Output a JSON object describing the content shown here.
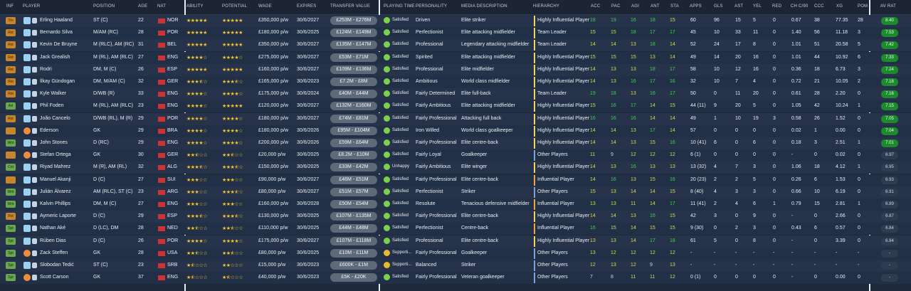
{
  "headers": {
    "inf": "INF",
    "player": "PLAYER",
    "position": "POSITION",
    "age": "AGE",
    "nat": "NAT",
    "ability": "ABILITY",
    "potential": "POTENTIAL",
    "wage": "WAGE",
    "expires": "EXPIRES",
    "transfer_value": "TRANSFER VALUE",
    "playing_time": "PLAYING TIME",
    "personality": "PERSONALITY",
    "media": "MEDIA DESCRIPTION",
    "hierarchy": "HIERARCHY",
    "acc": "ACC",
    "pac": "PAC",
    "agi": "AGI",
    "ant": "ANT",
    "sta": "STA",
    "apps": "APPS",
    "gls": "GLS",
    "ast": "AST",
    "yel": "YEL",
    "red": "RED",
    "chc90": "CH C/90",
    "ccc": "CCC",
    "xg": "XG",
    "pom": "POM",
    "avrat": "AV RAT"
  },
  "rows": [
    {
      "inf": "Trn",
      "name": "Erling Haaland",
      "pos": "ST (C)",
      "age": "22",
      "nat": "NOR",
      "ability_stars": 5,
      "potential_stars": 5,
      "wage": "£350,000 p/w",
      "expires": "30/6/2027",
      "tv": "£253M - £276M",
      "pt": "Satisfied",
      "pers": "Driven",
      "media": "Elite striker",
      "hier": "Highly Influential Player",
      "hier_color": "y",
      "acc": "18",
      "pac": "19",
      "agi": "16",
      "ant": "18",
      "sta": "15",
      "apps": "60",
      "gls": "96",
      "ast": "15",
      "yel": "5",
      "red": "0",
      "ch": "0.67",
      "ccc": "38",
      "xg": "77.35",
      "pom": "28",
      "av": "8.40"
    },
    {
      "inf": "Rst",
      "name": "Bernardo Silva",
      "pos": "M/AM (RC)",
      "age": "28",
      "nat": "POR",
      "ability_stars": 5,
      "potential_stars": 5,
      "wage": "£180,000 p/w",
      "expires": "30/6/2025",
      "tv": "£124M - £149M",
      "pt": "Satisfied",
      "pers": "Perfectionist",
      "media": "Elite attacking midfielder",
      "hier": "Team Leader",
      "hier_color": "y",
      "acc": "15",
      "pac": "15",
      "agi": "18",
      "ant": "17",
      "sta": "17",
      "apps": "45",
      "gls": "10",
      "ast": "33",
      "yel": "11",
      "red": "0",
      "ch": "1.40",
      "ccc": "56",
      "xg": "11.18",
      "pom": "3",
      "av": "7.53"
    },
    {
      "inf": "Rst",
      "name": "Kevin De Bruyne",
      "pos": "M (RLC), AM (RC)",
      "age": "31",
      "nat": "BEL",
      "ability_stars": 5,
      "potential_stars": 5,
      "wage": "£350,000 p/w",
      "expires": "30/6/2027",
      "tv": "£135M - £147M",
      "pt": "Satisfied",
      "pers": "Professional",
      "media": "Legendary attacking midfielder",
      "hier": "Team Leader",
      "hier_color": "y",
      "acc": "14",
      "pac": "14",
      "agi": "13",
      "ant": "18",
      "sta": "14",
      "apps": "52",
      "gls": "24",
      "ast": "17",
      "yel": "8",
      "red": "0",
      "ch": "1.01",
      "ccc": "51",
      "xg": "20.58",
      "pom": "5",
      "av": "7.42"
    },
    {
      "inf": "Rst",
      "name": "Jack Grealish",
      "pos": "M (RL), AM (RLC)",
      "age": "27",
      "nat": "ENG",
      "ability_stars": 4,
      "potential_stars": 4,
      "wage": "£275,000 p/w",
      "expires": "30/6/2027",
      "tv": "£53M - £71M",
      "pt": "Satisfied",
      "pers": "Spirited",
      "media": "Elite attacking midfielder",
      "hier": "Highly Influential Player",
      "hier_color": "y",
      "acc": "15",
      "pac": "15",
      "agi": "15",
      "ant": "13",
      "sta": "14",
      "apps": "49",
      "gls": "14",
      "ast": "20",
      "yel": "16",
      "red": "0",
      "ch": "1.01",
      "ccc": "44",
      "xg": "10.92",
      "pom": "6",
      "av": "7.33"
    },
    {
      "inf": "Rst",
      "name": "Rodri",
      "pos": "DM, M (C)",
      "age": "26",
      "nat": "ESP",
      "ability_stars": 5,
      "potential_stars": 5,
      "wage": "£160,000 p/w",
      "expires": "30/6/2027",
      "tv": "£109M - £136M",
      "pt": "Satisfied",
      "pers": "Professional",
      "media": "Elite midfielder",
      "hier": "Highly Influential Player",
      "hier_color": "y",
      "acc": "14",
      "pac": "13",
      "agi": "13",
      "ant": "18",
      "sta": "17",
      "apps": "58",
      "gls": "10",
      "ast": "12",
      "yel": "16",
      "red": "0",
      "ch": "0.36",
      "ccc": "18",
      "xg": "6.73",
      "pom": "3",
      "av": "7.24"
    },
    {
      "inf": "Rst",
      "name": "İlkay Gündogan",
      "pos": "DM, M/AM (C)",
      "age": "32",
      "nat": "GER",
      "ability_stars": 3.5,
      "potential_stars": 3.5,
      "wage": "£165,000 p/w",
      "expires": "30/6/2023",
      "tv": "£7.2M - £8M",
      "pt": "Satisfied",
      "pers": "Ambitious",
      "media": "World class midfielder",
      "hier": "Highly Influential Player",
      "hier_color": "y",
      "acc": "14",
      "pac": "13",
      "agi": "16",
      "ant": "17",
      "sta": "16",
      "apps": "32",
      "gls": "10",
      "ast": "7",
      "yel": "4",
      "red": "0",
      "ch": "0.72",
      "ccc": "21",
      "xg": "10.05",
      "pom": "2",
      "av": "7.18"
    },
    {
      "inf": "Rst",
      "name": "Kyle Walker",
      "pos": "D/WB (R)",
      "age": "33",
      "nat": "ENG",
      "ability_stars": 4,
      "potential_stars": 4,
      "wage": "£175,000 p/w",
      "expires": "30/6/2024",
      "tv": "£40M - £44M",
      "pt": "Satisfied",
      "pers": "Fairly Determined",
      "media": "Elite full-back",
      "hier": "Team Leader",
      "hier_color": "y",
      "acc": "19",
      "pac": "18",
      "agi": "13",
      "ant": "16",
      "sta": "17",
      "apps": "50",
      "gls": "0",
      "ast": "11",
      "yel": "20",
      "red": "0",
      "ch": "0.61",
      "ccc": "28",
      "xg": "2.20",
      "pom": "0",
      "av": "7.16"
    },
    {
      "inf": "Avl",
      "name": "Phil Foden",
      "pos": "M (RL), AM (RLC)",
      "age": "23",
      "nat": "ENG",
      "ability_stars": 4,
      "potential_stars": 5,
      "wage": "£120,000 p/w",
      "expires": "30/6/2027",
      "tv": "£132M - £160M",
      "pt": "Satisfied",
      "pers": "Fairly Ambitious",
      "media": "Elite attacking midfielder",
      "hier": "Highly Influential Player",
      "hier_color": "y",
      "acc": "15",
      "pac": "16",
      "agi": "17",
      "ant": "14",
      "sta": "15",
      "apps": "44 (11)",
      "gls": "9",
      "ast": "20",
      "yel": "5",
      "red": "0",
      "ch": "1.05",
      "ccc": "42",
      "xg": "10.24",
      "pom": "1",
      "av": "7.15"
    },
    {
      "inf": "Rst",
      "name": "João Cancelo",
      "pos": "D/WB (RL), M (R)",
      "age": "29",
      "nat": "POR",
      "ability_stars": 4,
      "potential_stars": 4,
      "wage": "£180,000 p/w",
      "expires": "30/6/2027",
      "tv": "£74M - £81M",
      "pt": "Satisfied",
      "pers": "Fairly Professional",
      "media": "Attacking full back",
      "hier": "Highly Influential Player",
      "hier_color": "y",
      "acc": "16",
      "pac": "16",
      "agi": "16",
      "ant": "14",
      "sta": "14",
      "apps": "49",
      "gls": "1",
      "ast": "10",
      "yel": "19",
      "red": "3",
      "ch": "0.58",
      "ccc": "26",
      "xg": "1.52",
      "pom": "0",
      "av": "7.05"
    },
    {
      "inf": "",
      "name": "Ederson",
      "pos": "GK",
      "age": "29",
      "nat": "BRA",
      "ability_stars": 4,
      "potential_stars": 4,
      "wage": "£180,000 p/w",
      "expires": "30/6/2026",
      "tv": "£95M - £104M",
      "pt": "Satisfied",
      "pers": "Iron Willed",
      "media": "World class goalkeeper",
      "hier": "Highly Influential Player",
      "hier_color": "y",
      "acc": "14",
      "pac": "14",
      "agi": "13",
      "ant": "17",
      "sta": "14",
      "apps": "57",
      "gls": "0",
      "ast": "0",
      "yel": "0",
      "red": "0",
      "ch": "0.02",
      "ccc": "1",
      "xg": "0.00",
      "pom": "0",
      "av": "7.04"
    },
    {
      "inf": "Wnt",
      "name": "John Stones",
      "pos": "D (RC)",
      "age": "29",
      "nat": "ENG",
      "ability_stars": 4,
      "potential_stars": 4,
      "wage": "£200,000 p/w",
      "expires": "30/6/2026",
      "tv": "£59M - £64M",
      "pt": "Satisfied",
      "pers": "Fairly Professional",
      "media": "Elite centre-back",
      "hier": "Highly Influential Player",
      "hier_color": "y",
      "acc": "14",
      "pac": "14",
      "agi": "13",
      "ant": "15",
      "sta": "16",
      "apps": "10 (41)",
      "gls": "6",
      "ast": "0",
      "yel": "6",
      "red": "0",
      "ch": "0.18",
      "ccc": "3",
      "xg": "2.51",
      "pom": "1",
      "av": "7.01"
    },
    {
      "inf": "",
      "name": "Stefan Ortega",
      "pos": "GK",
      "age": "30",
      "nat": "GER",
      "ability_stars": 2.5,
      "potential_stars": 2.5,
      "wage": "£20,000 p/w",
      "expires": "30/6/2025",
      "tv": "£8.2M - £10M",
      "pt": "Satisfied",
      "pers": "Fairly Loyal",
      "media": "Goalkeeper",
      "hier": "Other Players",
      "hier_color": "b",
      "acc": "11",
      "pac": "9",
      "agi": "12",
      "ant": "12",
      "sta": "12",
      "apps": "6 (1)",
      "gls": "0",
      "ast": "0",
      "yel": "0",
      "red": "0",
      "ch": "-",
      "ccc": "0",
      "xg": "0.02",
      "pom": "0",
      "av": "6.97"
    },
    {
      "inf": "Cnt",
      "name": "Riyad Mahrez",
      "pos": "M (R), AM (RL)",
      "age": "32",
      "nat": "ALG",
      "ability_stars": 3.5,
      "potential_stars": 3.5,
      "wage": "£150,000 p/w",
      "expires": "30/6/2025",
      "tv": "£33M - £42M",
      "pt": "Unhappy",
      "pers": "Fairly Ambitious",
      "media": "Elite winger",
      "hier": "Highly Influential Player",
      "hier_color": "y",
      "acc": "14",
      "pac": "13",
      "agi": "16",
      "ant": "13",
      "sta": "13",
      "apps": "13 (32)",
      "gls": "4",
      "ast": "7",
      "yel": "3",
      "red": "0",
      "ch": "1.06",
      "ccc": "18",
      "xg": "4.12",
      "pom": "1",
      "av": "6.95"
    },
    {
      "inf": "",
      "name": "Manuel Akanji",
      "pos": "D (C)",
      "age": "27",
      "nat": "SUI",
      "ability_stars": 3,
      "potential_stars": 3,
      "wage": "£90,000 p/w",
      "expires": "30/6/2027",
      "tv": "£46M - £51M",
      "pt": "Satisfied",
      "pers": "Fairly Professional",
      "media": "Elite centre-back",
      "hier": "Influential Player",
      "hier_color": "o",
      "acc": "14",
      "pac": "16",
      "agi": "13",
      "ant": "15",
      "sta": "16",
      "apps": "20 (23)",
      "gls": "2",
      "ast": "2",
      "yel": "5",
      "red": "0",
      "ch": "0.26",
      "ccc": "6",
      "xg": "1.53",
      "pom": "0",
      "av": "6.93"
    },
    {
      "inf": "Wnt",
      "name": "Julián Álvarez",
      "pos": "AM (RLC), ST (C)",
      "age": "23",
      "nat": "ARG",
      "ability_stars": 3,
      "potential_stars": 3.5,
      "wage": "£80,000 p/w",
      "expires": "30/6/2027",
      "tv": "£51M - £57M",
      "pt": "Satisfied",
      "pers": "Perfectionist",
      "media": "Striker",
      "hier": "Other Players",
      "hier_color": "b",
      "acc": "15",
      "pac": "13",
      "agi": "14",
      "ant": "14",
      "sta": "15",
      "apps": "8 (40)",
      "gls": "4",
      "ast": "3",
      "yel": "3",
      "red": "0",
      "ch": "0.66",
      "ccc": "10",
      "xg": "6.19",
      "pom": "0",
      "av": "6.91"
    },
    {
      "inf": "Wnt",
      "name": "Kalvin Phillips",
      "pos": "DM, M (C)",
      "age": "27",
      "nat": "ENG",
      "ability_stars": 3,
      "potential_stars": 3,
      "wage": "£160,000 p/w",
      "expires": "30/6/2028",
      "tv": "£50M - £54M",
      "pt": "Satisfied",
      "pers": "Resolute",
      "media": "Tenacious defensive midfielder",
      "hier": "Influential Player",
      "hier_color": "o",
      "acc": "13",
      "pac": "13",
      "agi": "11",
      "ant": "14",
      "sta": "17",
      "apps": "11 (41)",
      "gls": "2",
      "ast": "4",
      "yel": "6",
      "red": "1",
      "ch": "0.79",
      "ccc": "15",
      "xg": "2.81",
      "pom": "1",
      "av": "6.89"
    },
    {
      "inf": "Rst",
      "name": "Aymeric Laporte",
      "pos": "D (C)",
      "age": "29",
      "nat": "ESP",
      "ability_stars": 3.5,
      "potential_stars": 3.5,
      "wage": "£130,000 p/w",
      "expires": "30/6/2025",
      "tv": "£107M - £135M",
      "pt": "Satisfied",
      "pers": "Fairly Professional",
      "media": "Elite centre-back",
      "hier": "Highly Influential Player",
      "hier_color": "y",
      "acc": "14",
      "pac": "14",
      "agi": "13",
      "ant": "16",
      "sta": "15",
      "apps": "42",
      "gls": "3",
      "ast": "0",
      "yel": "9",
      "red": "0",
      "ch": "-",
      "ccc": "0",
      "xg": "2.66",
      "pom": "0",
      "av": "6.87"
    },
    {
      "inf": "Spt",
      "name": "Nathan Aké",
      "pos": "D (LC), DM",
      "age": "28",
      "nat": "NED",
      "ability_stars": 2.5,
      "potential_stars": 2.5,
      "wage": "£110,000 p/w",
      "expires": "30/6/2025",
      "tv": "£44M - £48M",
      "pt": "Satisfied",
      "pers": "Perfectionist",
      "media": "Centre-back",
      "hier": "Influential Player",
      "hier_color": "o",
      "acc": "16",
      "pac": "15",
      "agi": "14",
      "ant": "15",
      "sta": "15",
      "apps": "9 (30)",
      "gls": "0",
      "ast": "2",
      "yel": "3",
      "red": "0",
      "ch": "0.43",
      "ccc": "6",
      "xg": "0.57",
      "pom": "0",
      "av": "6.84"
    },
    {
      "inf": "Spt",
      "name": "Rúben Dias",
      "pos": "D (C)",
      "age": "26",
      "nat": "POR",
      "ability_stars": 4,
      "potential_stars": 4,
      "wage": "£175,000 p/w",
      "expires": "30/6/2027",
      "tv": "£107M - £118M",
      "pt": "Satisfied",
      "pers": "Professional",
      "media": "Elite centre-back",
      "hier": "Highly Influential Player",
      "hier_color": "y",
      "acc": "13",
      "pac": "13",
      "agi": "14",
      "ant": "17",
      "sta": "18",
      "apps": "61",
      "gls": "5",
      "ast": "0",
      "yel": "8",
      "red": "0",
      "ch": "-",
      "ccc": "0",
      "xg": "3.39",
      "pom": "0",
      "av": "6.84"
    },
    {
      "inf": "Spt",
      "name": "Zack Steffen",
      "pos": "GK",
      "age": "28",
      "nat": "USA",
      "ability_stars": 2.5,
      "potential_stars": 2.5,
      "wage": "£80,000 p/w",
      "expires": "30/6/2025",
      "tv": "£10M - £11M",
      "pt": "Supporti...",
      "pt_warn": true,
      "pers": "Fairly Professional",
      "media": "Goalkeeper",
      "hier": "Other Players",
      "hier_color": "b",
      "acc": "13",
      "pac": "12",
      "agi": "12",
      "ant": "12",
      "sta": "12",
      "apps": "-",
      "gls": "-",
      "ast": "-",
      "yel": "-",
      "red": "-",
      "ch": "-",
      "ccc": "-",
      "xg": "-",
      "pom": "-",
      "av": "-"
    },
    {
      "inf": "Spt",
      "name": "Slobodan Tedić",
      "pos": "ST (C)",
      "age": "23",
      "nat": "SRB",
      "ability_stars": 1.5,
      "potential_stars": 2,
      "wage": "£15,000 p/w",
      "expires": "30/6/2023",
      "tv": "£600K - £1M",
      "pt": "Supporti...",
      "pt_warn": true,
      "pers": "Balanced",
      "media": "Striker",
      "hier": "Other Players",
      "hier_color": "b",
      "acc": "12",
      "pac": "13",
      "agi": "12",
      "ant": "9",
      "sta": "13",
      "apps": "-",
      "gls": "-",
      "ast": "-",
      "yel": "-",
      "red": "-",
      "ch": "-",
      "ccc": "-",
      "xg": "-",
      "pom": "-",
      "av": "-"
    },
    {
      "inf": "Spt",
      "name": "Scott Carson",
      "pos": "GK",
      "age": "37",
      "nat": "ENG",
      "ability_stars": 1.5,
      "potential_stars": 1.5,
      "wage": "£40,000 p/w",
      "expires": "30/6/2023",
      "tv": "£5K - £20K",
      "pt": "Satisfied",
      "pers": "Fairly Professional",
      "media": "Veteran goalkeeper",
      "hier": "Other Players",
      "hier_color": "b",
      "acc": "7",
      "pac": "8",
      "agi": "11",
      "ant": "11",
      "sta": "12",
      "apps": "0 (1)",
      "gls": "0",
      "ast": "0",
      "yel": "0",
      "red": "0",
      "ch": "-",
      "ccc": "0",
      "xg": "0.00",
      "pom": "0",
      "av": "-"
    }
  ]
}
